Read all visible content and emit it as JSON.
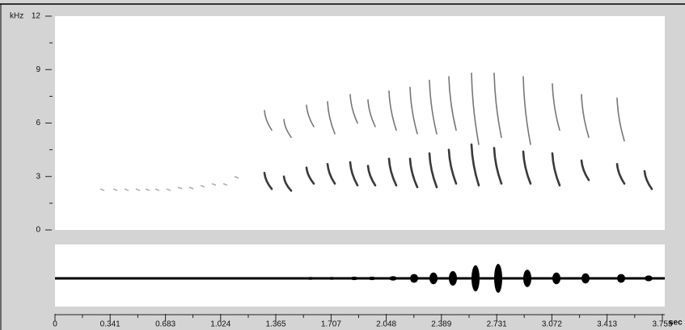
{
  "chart_data": {
    "type": "spectrogram",
    "y_label": "kHz",
    "x_label": "sec",
    "ylim": [
      0,
      12
    ],
    "yticks": [
      0,
      3,
      6,
      9,
      12
    ],
    "yminor": [
      1.5,
      4.5,
      7.5,
      10.5
    ],
    "xlim": [
      0,
      3.77
    ],
    "xticks": [
      0,
      0.341,
      0.683,
      1.024,
      1.365,
      1.707,
      2.048,
      2.389,
      2.731,
      3.072,
      3.413,
      3.755
    ],
    "xminor": [
      0.17,
      0.512,
      0.853,
      1.195,
      1.536,
      1.877,
      2.219,
      2.56,
      2.901,
      3.243,
      3.584
    ],
    "color": "#3a3a3a",
    "faint_notes": [
      {
        "t": 0.28,
        "f": 2.3
      },
      {
        "t": 0.36,
        "f": 2.3
      },
      {
        "t": 0.43,
        "f": 2.3
      },
      {
        "t": 0.5,
        "f": 2.3
      },
      {
        "t": 0.56,
        "f": 2.3
      },
      {
        "t": 0.62,
        "f": 2.3
      },
      {
        "t": 0.69,
        "f": 2.3
      },
      {
        "t": 0.76,
        "f": 2.4
      },
      {
        "t": 0.83,
        "f": 2.4
      },
      {
        "t": 0.9,
        "f": 2.5
      },
      {
        "t": 0.97,
        "f": 2.6
      },
      {
        "t": 1.04,
        "f": 2.6
      },
      {
        "t": 1.11,
        "f": 3.0
      }
    ],
    "notes": [
      {
        "t": 1.31,
        "f_start": 3.2,
        "f_end": 2.3,
        "amplitude": 0.08
      },
      {
        "t": 1.43,
        "f_start": 3.0,
        "f_end": 2.2,
        "amplitude": 0.08
      },
      {
        "t": 1.57,
        "f_start": 3.5,
        "f_end": 2.6,
        "amplitude": 0.1
      },
      {
        "t": 1.7,
        "f_start": 3.7,
        "f_end": 2.6,
        "amplitude": 0.1
      },
      {
        "t": 1.84,
        "f_start": 3.8,
        "f_end": 2.5,
        "amplitude": 0.12
      },
      {
        "t": 1.95,
        "f_start": 3.6,
        "f_end": 2.5,
        "amplitude": 0.12
      },
      {
        "t": 2.08,
        "f_start": 4.0,
        "f_end": 2.5,
        "amplitude": 0.15
      },
      {
        "t": 2.21,
        "f_start": 4.0,
        "f_end": 2.4,
        "amplitude": 0.3
      },
      {
        "t": 2.33,
        "f_start": 4.3,
        "f_end": 2.4,
        "amplitude": 0.4
      },
      {
        "t": 2.45,
        "f_start": 4.5,
        "f_end": 2.6,
        "amplitude": 0.5
      },
      {
        "t": 2.59,
        "f_start": 4.8,
        "f_end": 2.5,
        "amplitude": 0.9
      },
      {
        "t": 2.73,
        "f_start": 4.6,
        "f_end": 2.6,
        "amplitude": 1.0
      },
      {
        "t": 2.91,
        "f_start": 4.4,
        "f_end": 2.6,
        "amplitude": 0.6
      },
      {
        "t": 3.09,
        "f_start": 4.3,
        "f_end": 2.5,
        "amplitude": 0.4
      },
      {
        "t": 3.27,
        "f_start": 3.9,
        "f_end": 2.8,
        "amplitude": 0.35
      },
      {
        "t": 3.49,
        "f_start": 3.7,
        "f_end": 2.6,
        "amplitude": 0.3
      },
      {
        "t": 3.66,
        "f_start": 3.3,
        "f_end": 2.3,
        "amplitude": 0.2
      }
    ],
    "harmonics": [
      {
        "t": 1.31,
        "f_start": 6.7,
        "f_end": 5.6
      },
      {
        "t": 1.43,
        "f_start": 6.2,
        "f_end": 5.2
      },
      {
        "t": 1.57,
        "f_start": 7.0,
        "f_end": 5.8
      },
      {
        "t": 1.7,
        "f_start": 7.2,
        "f_end": 5.4
      },
      {
        "t": 1.84,
        "f_start": 7.6,
        "f_end": 6.0
      },
      {
        "t": 1.95,
        "f_start": 7.3,
        "f_end": 5.8
      },
      {
        "t": 2.08,
        "f_start": 7.8,
        "f_end": 5.6
      },
      {
        "t": 2.21,
        "f_start": 8.0,
        "f_end": 5.4
      },
      {
        "t": 2.33,
        "f_start": 8.4,
        "f_end": 5.4
      },
      {
        "t": 2.45,
        "f_start": 8.6,
        "f_end": 5.6
      },
      {
        "t": 2.59,
        "f_start": 8.8,
        "f_end": 4.8
      },
      {
        "t": 2.73,
        "f_start": 8.8,
        "f_end": 5.2
      },
      {
        "t": 2.91,
        "f_start": 8.6,
        "f_end": 4.8
      },
      {
        "t": 3.09,
        "f_start": 8.2,
        "f_end": 5.6
      },
      {
        "t": 3.27,
        "f_start": 7.6,
        "f_end": 5.2
      },
      {
        "t": 3.49,
        "f_start": 7.4,
        "f_end": 5.0
      }
    ]
  }
}
